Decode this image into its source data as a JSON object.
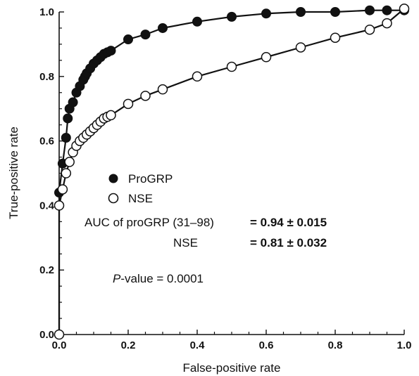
{
  "chart_data": {
    "type": "line",
    "title": "",
    "xlabel": "False-positive rate",
    "ylabel": "True-positive rate",
    "xlim": [
      0,
      1
    ],
    "ylim": [
      0,
      1
    ],
    "x_ticks": [
      "0.0",
      "0.2",
      "0.4",
      "0.6",
      "0.8",
      "1.0"
    ],
    "y_ticks": [
      "0.0",
      "0.2",
      "0.4",
      "0.6",
      "0.8",
      "1.0"
    ],
    "grid": false,
    "legend_placement": "center-left",
    "series": [
      {
        "name": "ProGRP",
        "marker": "filled-circle",
        "color": "#111111",
        "points": [
          [
            0,
            0
          ],
          [
            0.0,
            0.44
          ],
          [
            0.01,
            0.53
          ],
          [
            0.02,
            0.61
          ],
          [
            0.025,
            0.67
          ],
          [
            0.03,
            0.7
          ],
          [
            0.04,
            0.72
          ],
          [
            0.05,
            0.75
          ],
          [
            0.06,
            0.77
          ],
          [
            0.07,
            0.79
          ],
          [
            0.075,
            0.8
          ],
          [
            0.08,
            0.81
          ],
          [
            0.09,
            0.825
          ],
          [
            0.1,
            0.84
          ],
          [
            0.11,
            0.85
          ],
          [
            0.12,
            0.86
          ],
          [
            0.13,
            0.87
          ],
          [
            0.14,
            0.875
          ],
          [
            0.15,
            0.88
          ],
          [
            0.2,
            0.915
          ],
          [
            0.25,
            0.93
          ],
          [
            0.3,
            0.95
          ],
          [
            0.4,
            0.97
          ],
          [
            0.5,
            0.985
          ],
          [
            0.6,
            0.995
          ],
          [
            0.7,
            1.0
          ],
          [
            0.8,
            1.0
          ],
          [
            0.9,
            1.005
          ],
          [
            0.95,
            1.005
          ],
          [
            1.0,
            1.005
          ]
        ]
      },
      {
        "name": "NSE",
        "marker": "open-circle",
        "color": "#111111",
        "points": [
          [
            0,
            0
          ],
          [
            0.0,
            0.4
          ],
          [
            0.01,
            0.45
          ],
          [
            0.02,
            0.5
          ],
          [
            0.03,
            0.535
          ],
          [
            0.04,
            0.565
          ],
          [
            0.05,
            0.585
          ],
          [
            0.06,
            0.6
          ],
          [
            0.07,
            0.61
          ],
          [
            0.08,
            0.62
          ],
          [
            0.09,
            0.63
          ],
          [
            0.1,
            0.64
          ],
          [
            0.11,
            0.65
          ],
          [
            0.12,
            0.66
          ],
          [
            0.13,
            0.67
          ],
          [
            0.14,
            0.675
          ],
          [
            0.15,
            0.68
          ],
          [
            0.2,
            0.715
          ],
          [
            0.25,
            0.74
          ],
          [
            0.3,
            0.76
          ],
          [
            0.4,
            0.8
          ],
          [
            0.5,
            0.83
          ],
          [
            0.6,
            0.86
          ],
          [
            0.7,
            0.89
          ],
          [
            0.8,
            0.92
          ],
          [
            0.9,
            0.945
          ],
          [
            0.95,
            0.965
          ],
          [
            1.0,
            1.01
          ]
        ]
      }
    ],
    "annotations": {
      "auc_line1_label": "AUC of proGRP (31–98)",
      "auc_line1_value": "= 0.94 ± 0.015",
      "auc_line2_label": "NSE",
      "auc_line2_value": "= 0.81 ± 0.032",
      "pvalue_italic": "P",
      "pvalue_rest": "-value = 0.0001"
    }
  }
}
